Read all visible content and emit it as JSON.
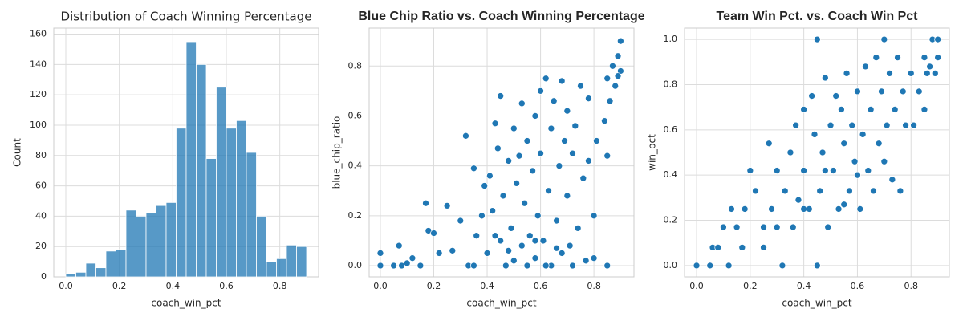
{
  "chart_data": [
    {
      "type": "histogram",
      "title": "Distribution of Coach Winning Percentage",
      "xlabel": "coach_win_pct",
      "ylabel": "Count",
      "color": "#1f77b4",
      "bins": [
        0,
        0.0375,
        0.075,
        0.1125,
        0.15,
        0.1875,
        0.225,
        0.2625,
        0.3,
        0.3375,
        0.375,
        0.4125,
        0.45,
        0.4875,
        0.525,
        0.5625,
        0.6,
        0.6375,
        0.675,
        0.7125,
        0.75,
        0.7875,
        0.825,
        0.8625,
        0.9
      ],
      "counts": [
        2,
        3,
        9,
        6,
        17,
        18,
        44,
        40,
        42,
        47,
        49,
        98,
        155,
        140,
        78,
        125,
        98,
        103,
        82,
        40,
        10,
        12,
        21,
        20
      ],
      "xlim": [
        -0.045,
        0.945
      ],
      "ylim": [
        0,
        164
      ],
      "xticks": [
        {
          "value": 0,
          "label": "0.0"
        },
        0.2,
        0.4,
        0.6,
        0.8
      ],
      "yticks": [
        0,
        20,
        40,
        60,
        80,
        100,
        120,
        140,
        160
      ],
      "grid": true
    },
    {
      "type": "scatter",
      "title": "Blue Chip Ratio vs. Coach Winning Percentage",
      "xlabel": "coach_win_pct",
      "ylabel": "blue_chip_ratio",
      "color": "#1f77b4",
      "x": [
        0,
        0,
        0.05,
        0.07,
        0.08,
        0.1,
        0.12,
        0.15,
        0.17,
        0.18,
        0.2,
        0.22,
        0.25,
        0.27,
        0.3,
        0.32,
        0.33,
        0.35,
        0.36,
        0.38,
        0.39,
        0.4,
        0.41,
        0.42,
        0.43,
        0.44,
        0.45,
        0.45,
        0.46,
        0.47,
        0.48,
        0.49,
        0.5,
        0.5,
        0.51,
        0.52,
        0.53,
        0.53,
        0.54,
        0.55,
        0.56,
        0.57,
        0.58,
        0.58,
        0.59,
        0.6,
        0.6,
        0.61,
        0.62,
        0.63,
        0.64,
        0.64,
        0.65,
        0.66,
        0.67,
        0.68,
        0.68,
        0.69,
        0.7,
        0.7,
        0.71,
        0.72,
        0.73,
        0.74,
        0.75,
        0.76,
        0.77,
        0.78,
        0.78,
        0.8,
        0.8,
        0.81,
        0.84,
        0.85,
        0.85,
        0.85,
        0.86,
        0.87,
        0.88,
        0.89,
        0.9,
        0.9,
        0.89,
        0.55,
        0.62,
        0.72,
        0.48,
        0.58,
        0.66,
        0.35,
        0.43
      ],
      "y": [
        0,
        0.05,
        0,
        0.08,
        0,
        0.01,
        0.03,
        0,
        0.25,
        0.14,
        0.13,
        0.05,
        0.24,
        0.06,
        0.18,
        0.52,
        0,
        0.39,
        0.12,
        0.2,
        0.32,
        0.05,
        0.36,
        0.22,
        0.57,
        0.47,
        0.68,
        0.1,
        0.28,
        0,
        0.42,
        0.15,
        0.55,
        0.02,
        0.33,
        0.44,
        0.65,
        0.08,
        0.25,
        0.5,
        0.12,
        0.38,
        0.6,
        0.03,
        0.2,
        0.7,
        0.45,
        0.1,
        0.75,
        0.3,
        0.55,
        0,
        0.66,
        0.18,
        0.4,
        0.74,
        0.05,
        0.5,
        0.28,
        0.62,
        0.08,
        0.45,
        0.56,
        0.15,
        0.72,
        0.35,
        0.02,
        0.42,
        0.67,
        0.2,
        0.03,
        0.5,
        0.58,
        0,
        0.44,
        0.75,
        0.66,
        0.8,
        0.72,
        0.84,
        0.9,
        0.78,
        0.76,
        0,
        0,
        0,
        0.06,
        0.1,
        0.07,
        0,
        0.12
      ],
      "xlim": [
        -0.042,
        0.95
      ],
      "ylim": [
        -0.045,
        0.952
      ],
      "xticks": [
        {
          "value": 0,
          "label": "0.0"
        },
        0.2,
        0.4,
        0.6,
        0.8
      ],
      "yticks": [
        {
          "value": 0,
          "label": "0.0"
        },
        0.2,
        0.4,
        0.6,
        0.8
      ],
      "grid": true
    },
    {
      "type": "scatter",
      "title": "Team Win Pct. vs. Coach Win Pct",
      "xlabel": "coach_win_pct",
      "ylabel": "win_pct",
      "color": "#1f77b4",
      "x": [
        0,
        0.05,
        0.06,
        0.08,
        0.1,
        0.12,
        0.13,
        0.15,
        0.17,
        0.18,
        0.2,
        0.22,
        0.25,
        0.27,
        0.28,
        0.3,
        0.32,
        0.33,
        0.35,
        0.36,
        0.37,
        0.38,
        0.4,
        0.4,
        0.42,
        0.43,
        0.44,
        0.45,
        0.45,
        0.46,
        0.47,
        0.48,
        0.49,
        0.5,
        0.51,
        0.52,
        0.53,
        0.54,
        0.55,
        0.56,
        0.57,
        0.58,
        0.59,
        0.6,
        0.61,
        0.62,
        0.63,
        0.64,
        0.65,
        0.66,
        0.67,
        0.68,
        0.69,
        0.7,
        0.7,
        0.71,
        0.72,
        0.73,
        0.74,
        0.75,
        0.76,
        0.77,
        0.78,
        0.8,
        0.81,
        0.83,
        0.85,
        0.85,
        0.86,
        0.87,
        0.88,
        0.89,
        0.9,
        0.9,
        0.55,
        0.6,
        0.48,
        0.4,
        0.3,
        0.25
      ],
      "y": [
        0,
        0,
        0.08,
        0.08,
        0.17,
        0,
        0.25,
        0.17,
        0.08,
        0.25,
        0.42,
        0.33,
        0.17,
        0.54,
        0.25,
        0.42,
        0,
        0.33,
        0.5,
        0.17,
        0.62,
        0.29,
        0.69,
        0.42,
        0.25,
        0.75,
        0.58,
        1,
        0,
        0.33,
        0.5,
        0.83,
        0.17,
        0.62,
        0.42,
        0.75,
        0.25,
        0.69,
        0.54,
        0.85,
        0.33,
        0.62,
        0.46,
        0.77,
        0.25,
        0.58,
        0.88,
        0.42,
        0.69,
        0.33,
        0.92,
        0.54,
        0.77,
        1,
        0.46,
        0.62,
        0.85,
        0.38,
        0.69,
        0.92,
        0.33,
        0.77,
        0.62,
        0.85,
        0.62,
        0.77,
        0.69,
        0.92,
        0.85,
        0.88,
        1,
        0.85,
        0.92,
        1,
        0.27,
        0.4,
        0.42,
        0.25,
        0.17,
        0.08
      ],
      "xlim": [
        -0.045,
        0.943
      ],
      "ylim": [
        -0.05,
        1.05
      ],
      "xticks": [
        {
          "value": 0,
          "label": "0.0"
        },
        0.2,
        0.4,
        0.6,
        0.8
      ],
      "yticks": [
        {
          "value": 0,
          "label": "0.0"
        },
        0.2,
        0.4,
        0.6,
        0.8,
        {
          "value": 1,
          "label": "1.0"
        }
      ],
      "grid": true
    }
  ]
}
